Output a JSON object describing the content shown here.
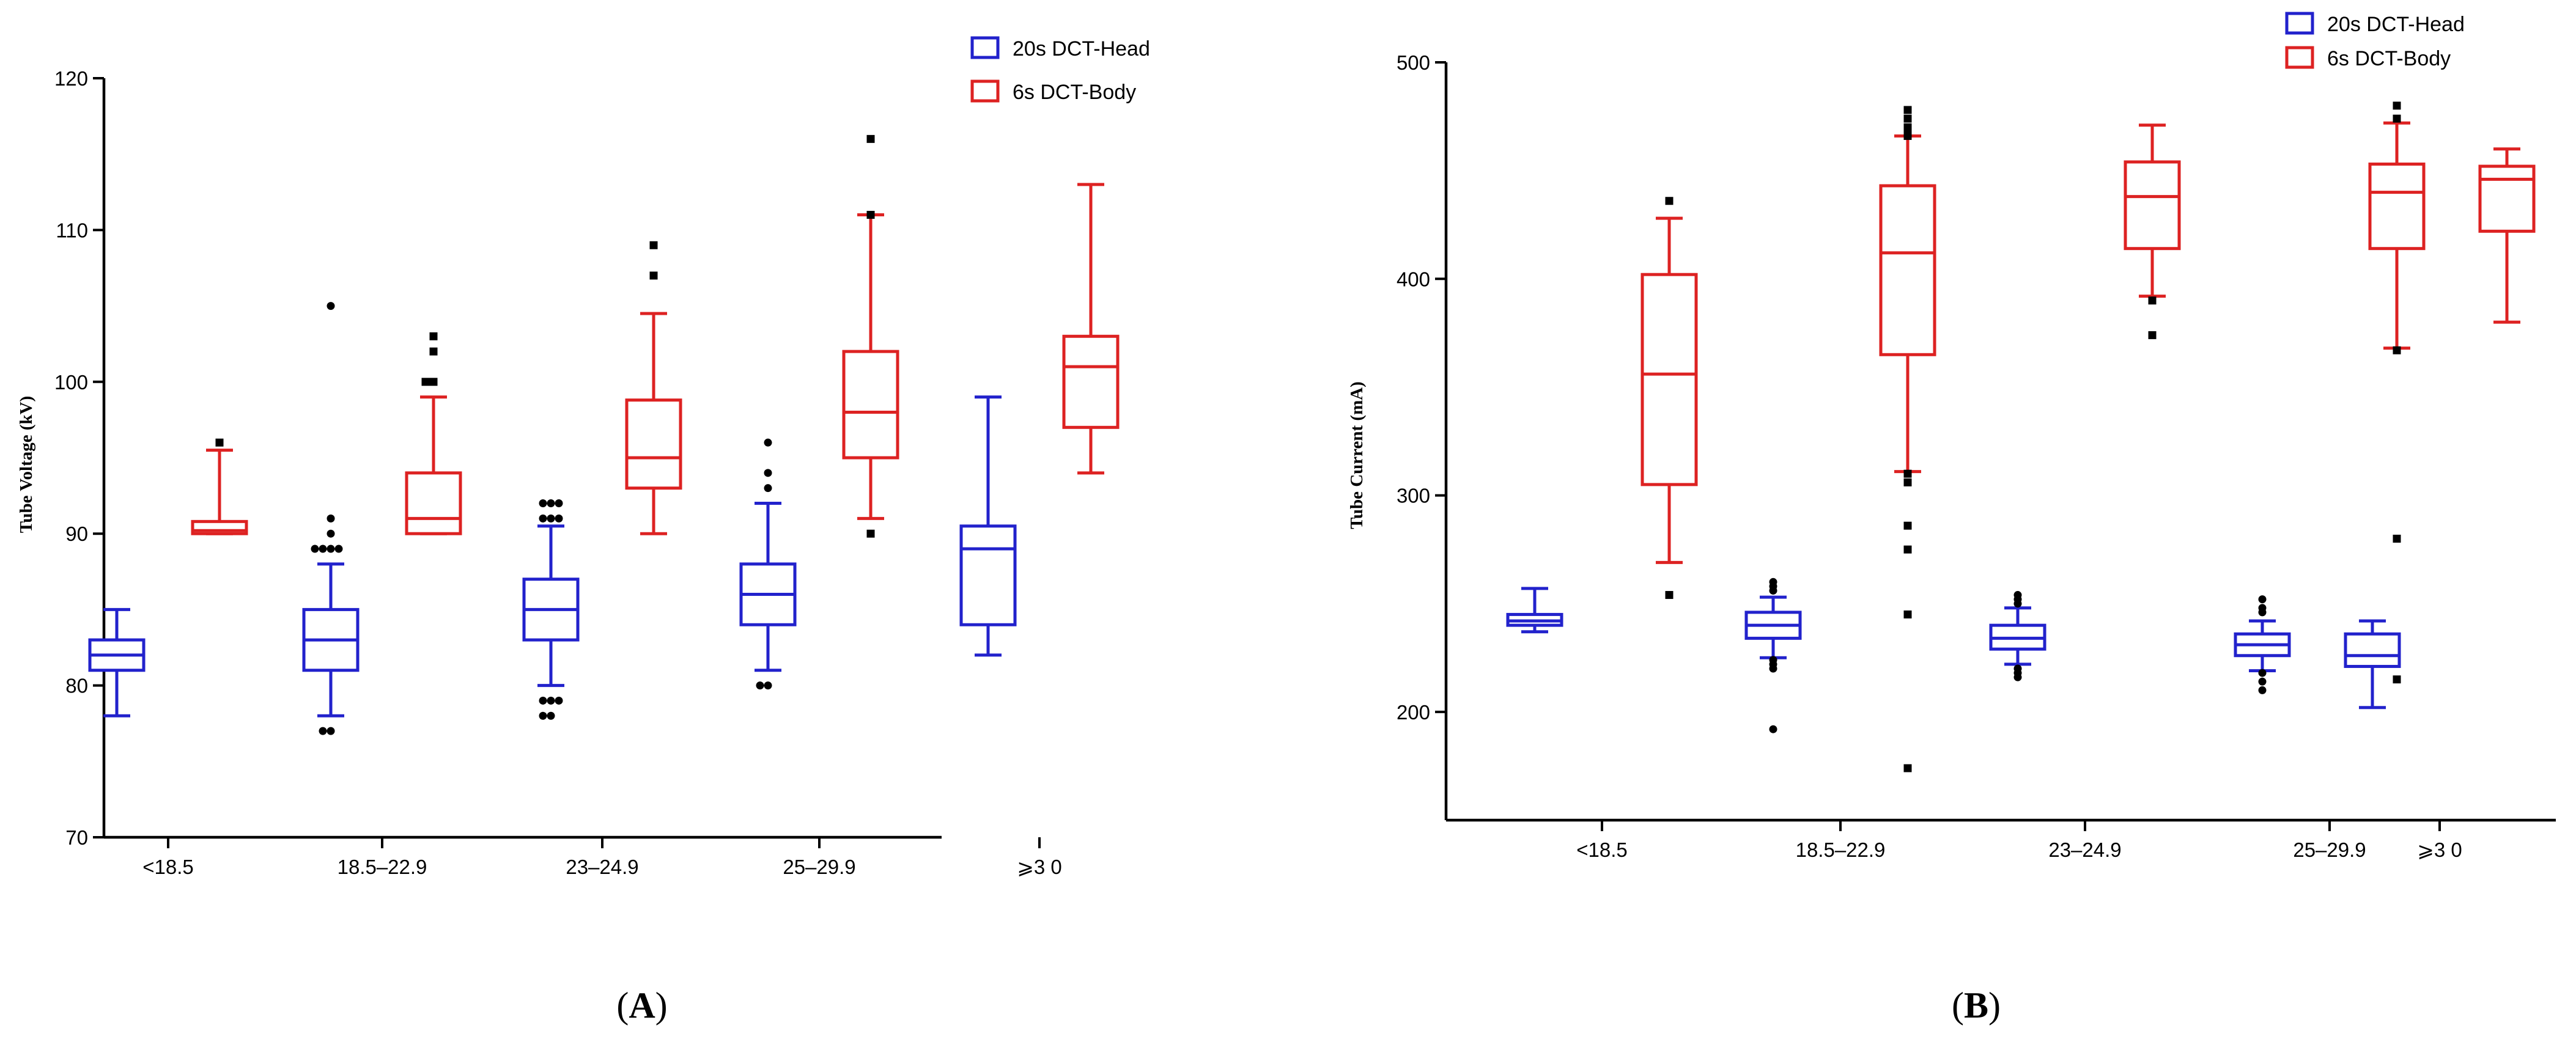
{
  "chart_data": [
    {
      "type": "boxplot",
      "panel_label": "A",
      "ylabel": "Tube Voltage (kV)",
      "xlabel": "",
      "ylim": [
        70,
        120
      ],
      "yticks": [
        70,
        80,
        90,
        100,
        110,
        120
      ],
      "categories": [
        "<18.5",
        "18.5–22.9",
        "23–24.9",
        "25–29.9",
        "⩾3 0"
      ],
      "legend": {
        "position": "top-right",
        "entries": [
          "20s DCT-Head",
          "6s DCT-Body"
        ]
      },
      "series": [
        {
          "name": "20s DCT-Head",
          "color": "#2222cc",
          "outlier_marker": "circle",
          "boxes": [
            {
              "min": 78,
              "q1": 81,
              "median": 82,
              "q3": 83,
              "max": 85,
              "outliers": []
            },
            {
              "min": 78,
              "q1": 81,
              "median": 83,
              "q3": 85,
              "max": 88,
              "outliers": [
                105,
                91,
                90,
                89,
                89,
                89,
                89,
                77,
                77
              ]
            },
            {
              "min": 80,
              "q1": 83,
              "median": 85,
              "q3": 87,
              "max": 90.5,
              "outliers": [
                92,
                92,
                92,
                91,
                91,
                91,
                79,
                79,
                79,
                78,
                78
              ]
            },
            {
              "min": 81,
              "q1": 84,
              "median": 86,
              "q3": 88,
              "max": 92,
              "outliers": [
                96,
                94,
                93,
                80,
                80
              ]
            },
            {
              "min": 82,
              "q1": 84,
              "median": 89,
              "q3": 90.5,
              "max": 99,
              "outliers": []
            }
          ]
        },
        {
          "name": "6s DCT-Body",
          "color": "#dd2222",
          "outlier_marker": "square",
          "boxes": [
            {
              "min": 90,
              "q1": 90,
              "median": 90.2,
              "q3": 90.8,
              "max": 95.5,
              "outliers": [
                96
              ]
            },
            {
              "min": 90,
              "q1": 90,
              "median": 91,
              "q3": 94,
              "max": 99,
              "outliers": [
                103,
                102,
                100,
                100
              ]
            },
            {
              "min": 90,
              "q1": 93,
              "median": 95,
              "q3": 98.8,
              "max": 104.5,
              "outliers": [
                109,
                107
              ]
            },
            {
              "min": 91,
              "q1": 95,
              "median": 98,
              "q3": 102,
              "max": 111,
              "outliers": [
                116,
                111,
                90
              ]
            },
            {
              "min": 94,
              "q1": 97,
              "median": 101,
              "q3": 103,
              "max": 113,
              "outliers": []
            }
          ]
        }
      ]
    },
    {
      "type": "boxplot",
      "panel_label": "B",
      "ylabel": "Tube Current (mA)",
      "xlabel": "",
      "ylim": [
        150,
        500
      ],
      "yticks": [
        200,
        300,
        400,
        500
      ],
      "categories": [
        "<18.5",
        "18.5–22.9",
        "23–24.9",
        "25–29.9",
        "⩾3 0"
      ],
      "legend": {
        "position": "top-right",
        "entries": [
          "20s DCT-Head",
          "6s DCT-Body"
        ]
      },
      "series": [
        {
          "name": "20s DCT-Head",
          "color": "#2222cc",
          "outlier_marker": "circle",
          "boxes": [
            {
              "min": 237,
              "q1": 240,
              "median": 242,
              "q3": 245,
              "max": 257,
              "outliers": []
            },
            {
              "min": 225,
              "q1": 234,
              "median": 240,
              "q3": 246,
              "max": 253,
              "outliers": [
                260,
                258,
                256,
                224,
                222,
                220,
                192
              ]
            },
            {
              "min": 222,
              "q1": 229,
              "median": 234,
              "q3": 240,
              "max": 248,
              "outliers": [
                254,
                252,
                250,
                220,
                218,
                216
              ]
            },
            {
              "min": 219,
              "q1": 226,
              "median": 231,
              "q3": 236,
              "max": 242,
              "outliers": [
                252,
                248,
                246,
                218,
                214,
                210
              ]
            },
            {
              "min": 202,
              "q1": 221,
              "median": 226,
              "q3": 236,
              "max": 242,
              "outliers": []
            }
          ]
        },
        {
          "name": "6s DCT-Body",
          "color": "#dd2222",
          "outlier_marker": "square",
          "boxes": [
            {
              "min": 269,
              "q1": 305,
              "median": 356,
              "q3": 402,
              "max": 428,
              "outliers": [
                436,
                254
              ]
            },
            {
              "min": 311,
              "q1": 365,
              "median": 412,
              "q3": 443,
              "max": 466,
              "outliers": [
                478,
                474,
                470,
                468,
                466,
                310,
                306,
                286,
                275,
                245,
                174
              ]
            },
            {
              "min": 392,
              "q1": 414,
              "median": 438,
              "q3": 454,
              "max": 471,
              "outliers": [
                390,
                374
              ]
            },
            {
              "min": 368,
              "q1": 414,
              "median": 440,
              "q3": 453,
              "max": 472,
              "outliers": [
                480,
                474,
                367,
                280,
                215
              ]
            },
            {
              "min": 380,
              "q1": 422,
              "median": 446,
              "q3": 452,
              "max": 460,
              "outliers": []
            }
          ]
        }
      ]
    }
  ]
}
